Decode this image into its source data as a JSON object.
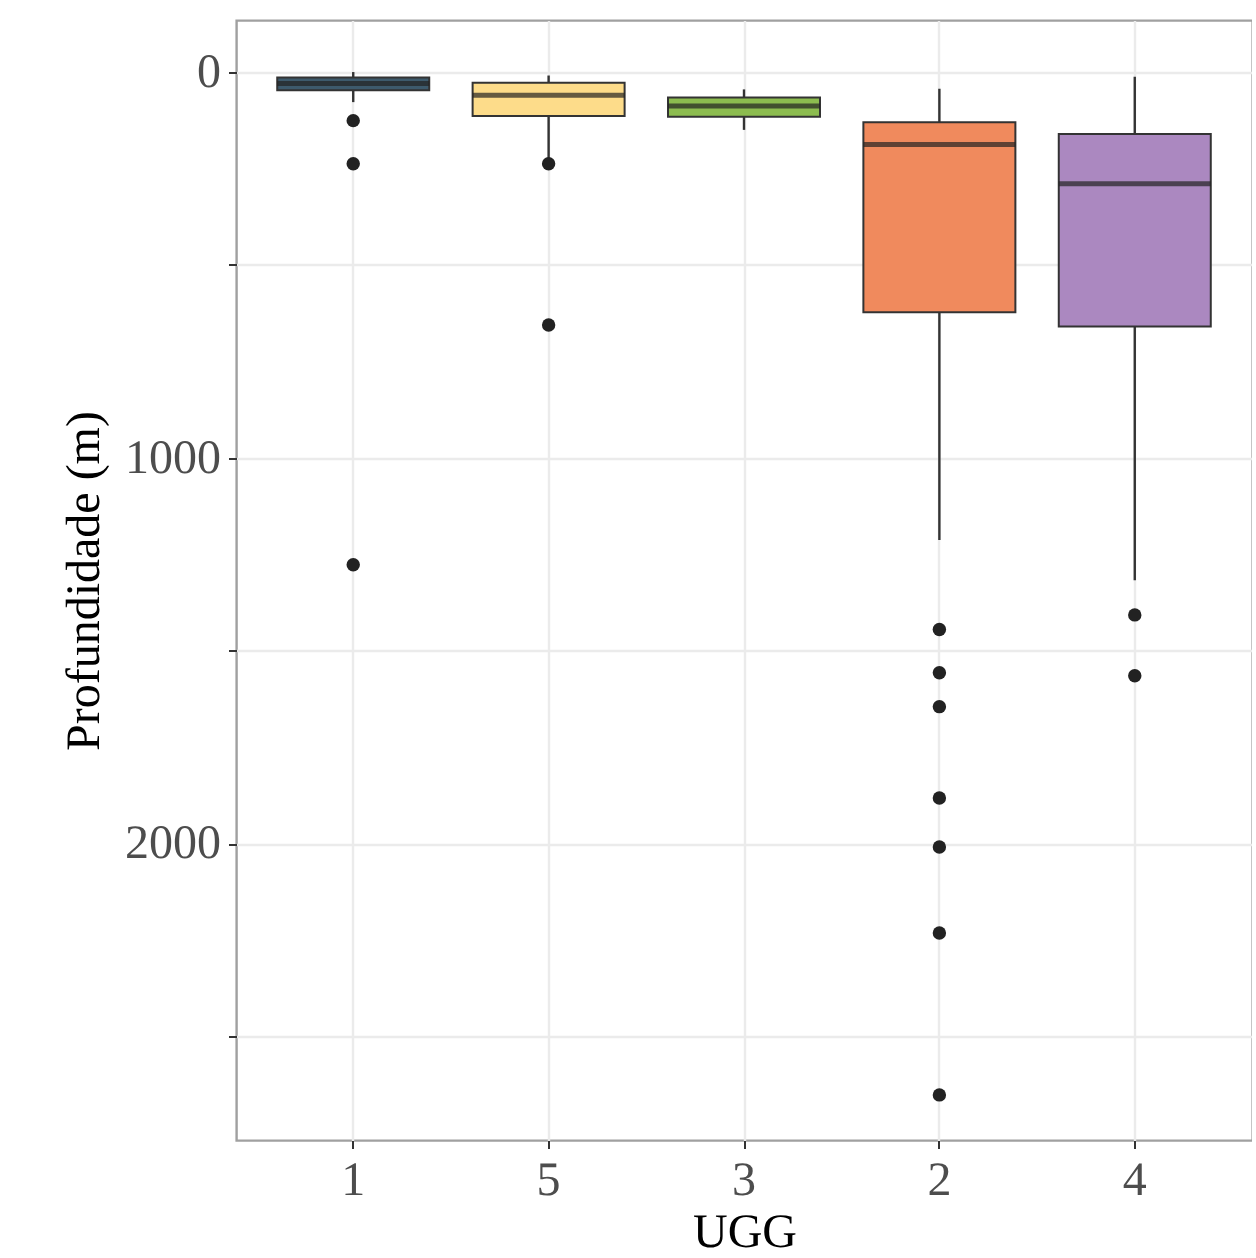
{
  "chart_data": {
    "type": "box",
    "xlabel": "UGG",
    "ylabel": "Profundidade (m)",
    "categories": [
      "1",
      "5",
      "3",
      "2",
      "4"
    ],
    "colors": [
      "#3d5a6c",
      "#fddc8a",
      "#8cbc4f",
      "#f08a5d",
      "#ab88c0"
    ],
    "boxes": [
      {
        "low": 0,
        "q1": 14,
        "median": 30,
        "q3": 47,
        "high": 78,
        "outliers": [
          126,
          238,
          1278
        ]
      },
      {
        "low": 9,
        "q1": 28,
        "median": 60,
        "q3": 114,
        "high": 225,
        "outliers": [
          238,
          656
        ]
      },
      {
        "low": 45,
        "q1": 66,
        "median": 88,
        "q3": 116,
        "high": 150
      },
      {
        "low": 43,
        "q1": 130,
        "median": 188,
        "q3": 623,
        "high": 1214,
        "outliers": [
          1446,
          1558,
          1646,
          1883,
          2010,
          2233,
          2653
        ]
      },
      {
        "low": 12,
        "q1": 161,
        "median": 290,
        "q3": 660,
        "high": 1318,
        "outliers": [
          1408,
          1566
        ]
      }
    ],
    "ylim": [
      2770,
      -135
    ],
    "yticks": [
      0,
      {
        "value": 500,
        "label": null
      },
      1000,
      {
        "value": 1500,
        "label": null
      },
      2000,
      {
        "value": 2500,
        "label": null
      }
    ],
    "grid": true
  }
}
